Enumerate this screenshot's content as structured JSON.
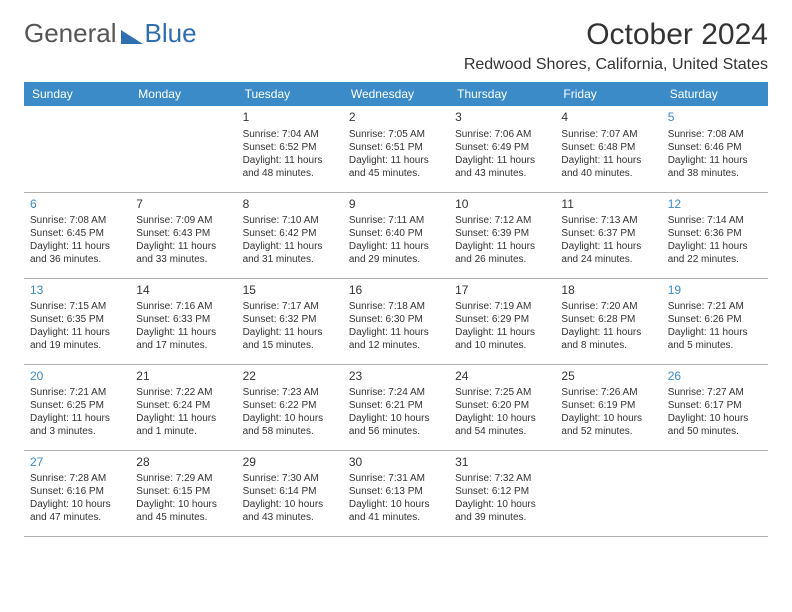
{
  "logo": {
    "part1": "General",
    "part2": "Blue"
  },
  "title": "October 2024",
  "location": "Redwood Shores, California, United States",
  "header_bg": "#3b8bc9",
  "header_fg": "#ffffff",
  "text_color": "#333333",
  "weekend_daynum_color": "#3b8bc9",
  "row_border_color": "#b0b0b0",
  "columns": [
    "Sunday",
    "Monday",
    "Tuesday",
    "Wednesday",
    "Thursday",
    "Friday",
    "Saturday"
  ],
  "weeks": [
    [
      null,
      null,
      {
        "n": "1",
        "sr": "7:04 AM",
        "ss": "6:52 PM",
        "dl": "11 hours and 48 minutes."
      },
      {
        "n": "2",
        "sr": "7:05 AM",
        "ss": "6:51 PM",
        "dl": "11 hours and 45 minutes."
      },
      {
        "n": "3",
        "sr": "7:06 AM",
        "ss": "6:49 PM",
        "dl": "11 hours and 43 minutes."
      },
      {
        "n": "4",
        "sr": "7:07 AM",
        "ss": "6:48 PM",
        "dl": "11 hours and 40 minutes."
      },
      {
        "n": "5",
        "sr": "7:08 AM",
        "ss": "6:46 PM",
        "dl": "11 hours and 38 minutes."
      }
    ],
    [
      {
        "n": "6",
        "sr": "7:08 AM",
        "ss": "6:45 PM",
        "dl": "11 hours and 36 minutes."
      },
      {
        "n": "7",
        "sr": "7:09 AM",
        "ss": "6:43 PM",
        "dl": "11 hours and 33 minutes."
      },
      {
        "n": "8",
        "sr": "7:10 AM",
        "ss": "6:42 PM",
        "dl": "11 hours and 31 minutes."
      },
      {
        "n": "9",
        "sr": "7:11 AM",
        "ss": "6:40 PM",
        "dl": "11 hours and 29 minutes."
      },
      {
        "n": "10",
        "sr": "7:12 AM",
        "ss": "6:39 PM",
        "dl": "11 hours and 26 minutes."
      },
      {
        "n": "11",
        "sr": "7:13 AM",
        "ss": "6:37 PM",
        "dl": "11 hours and 24 minutes."
      },
      {
        "n": "12",
        "sr": "7:14 AM",
        "ss": "6:36 PM",
        "dl": "11 hours and 22 minutes."
      }
    ],
    [
      {
        "n": "13",
        "sr": "7:15 AM",
        "ss": "6:35 PM",
        "dl": "11 hours and 19 minutes."
      },
      {
        "n": "14",
        "sr": "7:16 AM",
        "ss": "6:33 PM",
        "dl": "11 hours and 17 minutes."
      },
      {
        "n": "15",
        "sr": "7:17 AM",
        "ss": "6:32 PM",
        "dl": "11 hours and 15 minutes."
      },
      {
        "n": "16",
        "sr": "7:18 AM",
        "ss": "6:30 PM",
        "dl": "11 hours and 12 minutes."
      },
      {
        "n": "17",
        "sr": "7:19 AM",
        "ss": "6:29 PM",
        "dl": "11 hours and 10 minutes."
      },
      {
        "n": "18",
        "sr": "7:20 AM",
        "ss": "6:28 PM",
        "dl": "11 hours and 8 minutes."
      },
      {
        "n": "19",
        "sr": "7:21 AM",
        "ss": "6:26 PM",
        "dl": "11 hours and 5 minutes."
      }
    ],
    [
      {
        "n": "20",
        "sr": "7:21 AM",
        "ss": "6:25 PM",
        "dl": "11 hours and 3 minutes."
      },
      {
        "n": "21",
        "sr": "7:22 AM",
        "ss": "6:24 PM",
        "dl": "11 hours and 1 minute."
      },
      {
        "n": "22",
        "sr": "7:23 AM",
        "ss": "6:22 PM",
        "dl": "10 hours and 58 minutes."
      },
      {
        "n": "23",
        "sr": "7:24 AM",
        "ss": "6:21 PM",
        "dl": "10 hours and 56 minutes."
      },
      {
        "n": "24",
        "sr": "7:25 AM",
        "ss": "6:20 PM",
        "dl": "10 hours and 54 minutes."
      },
      {
        "n": "25",
        "sr": "7:26 AM",
        "ss": "6:19 PM",
        "dl": "10 hours and 52 minutes."
      },
      {
        "n": "26",
        "sr": "7:27 AM",
        "ss": "6:17 PM",
        "dl": "10 hours and 50 minutes."
      }
    ],
    [
      {
        "n": "27",
        "sr": "7:28 AM",
        "ss": "6:16 PM",
        "dl": "10 hours and 47 minutes."
      },
      {
        "n": "28",
        "sr": "7:29 AM",
        "ss": "6:15 PM",
        "dl": "10 hours and 45 minutes."
      },
      {
        "n": "29",
        "sr": "7:30 AM",
        "ss": "6:14 PM",
        "dl": "10 hours and 43 minutes."
      },
      {
        "n": "30",
        "sr": "7:31 AM",
        "ss": "6:13 PM",
        "dl": "10 hours and 41 minutes."
      },
      {
        "n": "31",
        "sr": "7:32 AM",
        "ss": "6:12 PM",
        "dl": "10 hours and 39 minutes."
      },
      null,
      null
    ]
  ],
  "labels": {
    "sunrise": "Sunrise:",
    "sunset": "Sunset:",
    "daylight": "Daylight:"
  }
}
